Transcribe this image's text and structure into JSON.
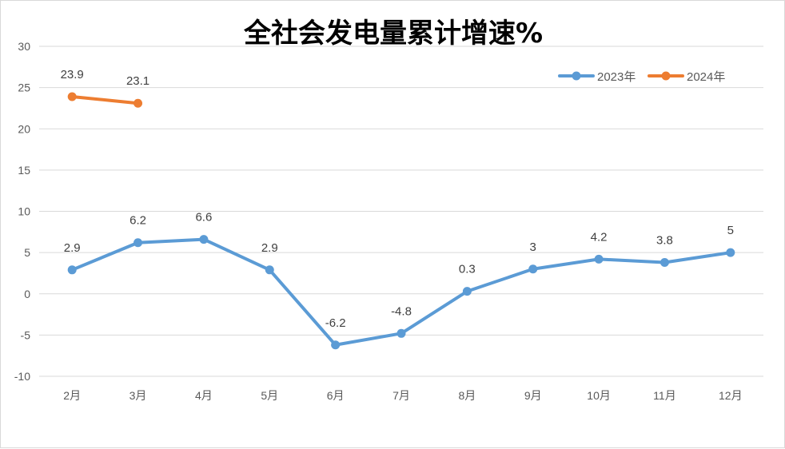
{
  "chart_data": {
    "type": "line",
    "title": "全社会发电量累计增速%",
    "categories": [
      "2月",
      "3月",
      "4月",
      "5月",
      "6月",
      "7月",
      "8月",
      "9月",
      "10月",
      "11月",
      "12月"
    ],
    "series": [
      {
        "name": "2023年",
        "color": "#5B9BD5",
        "values": [
          2.9,
          6.2,
          6.6,
          2.9,
          -6.2,
          -4.8,
          0.3,
          3,
          4.2,
          3.8,
          5
        ],
        "labels": [
          "2.9",
          "6.2",
          "6.6",
          "2.9",
          "-6.2",
          "-4.8",
          "0.3",
          "3",
          "4.2",
          "3.8",
          "5"
        ]
      },
      {
        "name": "2024年",
        "color": "#ED7D31",
        "values": [
          23.9,
          23.1,
          null,
          null,
          null,
          null,
          null,
          null,
          null,
          null,
          null
        ],
        "labels": [
          "23.9",
          "23.1"
        ]
      }
    ],
    "ylim": [
      -10,
      30
    ],
    "yticks": [
      30,
      25,
      20,
      15,
      10,
      5,
      0,
      -5,
      -10
    ],
    "ytick_labels": [
      "30",
      "25",
      "20",
      "15",
      "10",
      "5",
      "0",
      "-5",
      "-10"
    ],
    "xlabel": "",
    "ylabel": "",
    "grid": true,
    "legend_position": "top-right"
  }
}
